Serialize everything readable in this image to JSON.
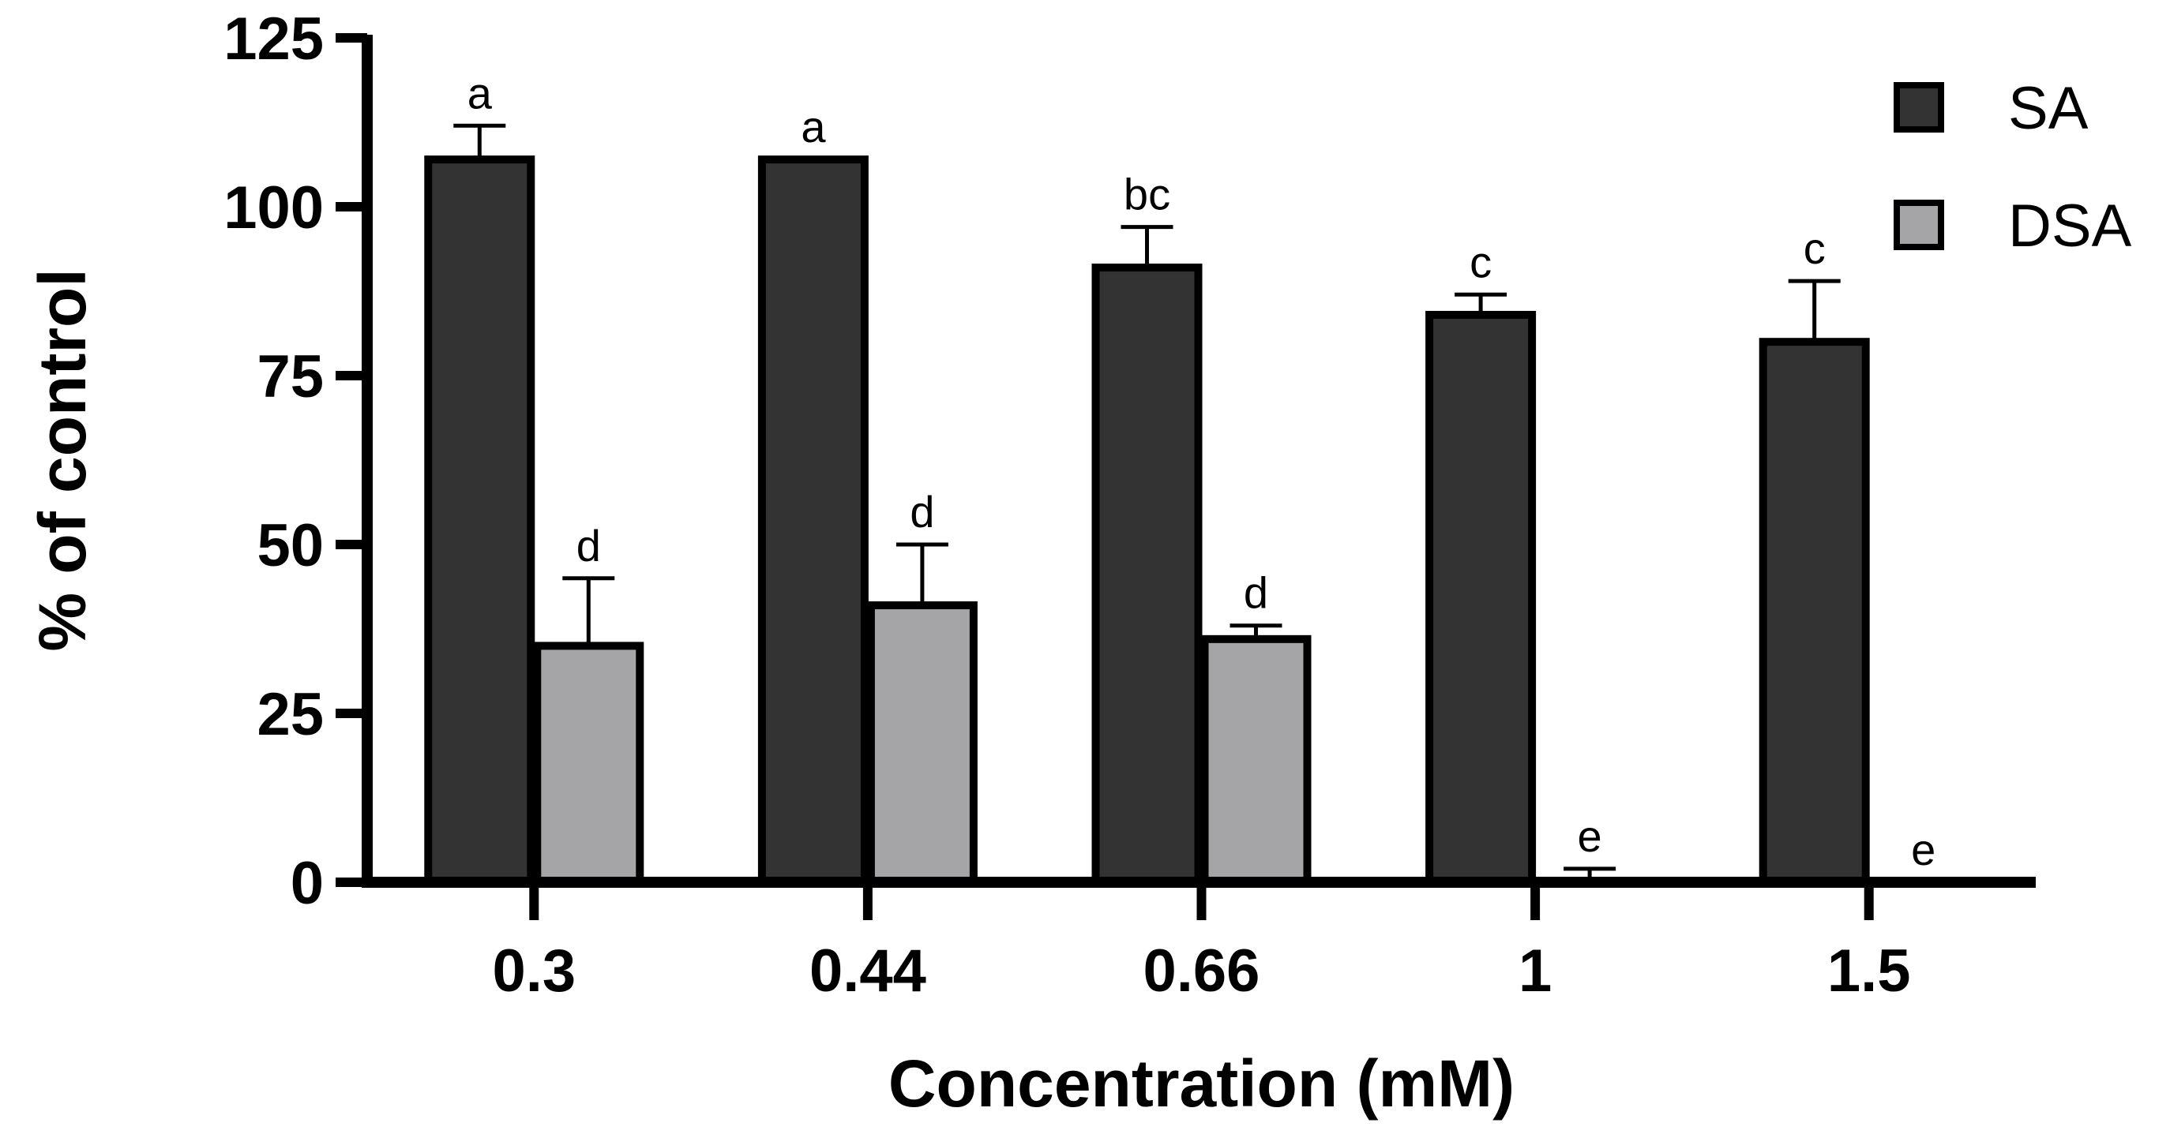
{
  "chart_data": {
    "type": "bar",
    "title": "",
    "xlabel": "Concentration (mM)",
    "ylabel": "% of control",
    "categories": [
      "0.3",
      "0.44",
      "0.66",
      "1",
      "1.5"
    ],
    "ylim": [
      0,
      125
    ],
    "yticks": [
      0,
      25,
      50,
      75,
      100,
      125
    ],
    "ytick_labels": [
      "0",
      "25",
      "50",
      "75",
      "100",
      "125"
    ],
    "grid": false,
    "legend_position": "top-right",
    "series": [
      {
        "name": "SA",
        "color": "#333333",
        "values": [
          107,
          107,
          91,
          84,
          80
        ],
        "errors": [
          5,
          0,
          6,
          3,
          9
        ],
        "labels": [
          "a",
          "a",
          "bc",
          "c",
          "c"
        ]
      },
      {
        "name": "DSA",
        "color": "#a5a5a8",
        "values": [
          35,
          41,
          36,
          0,
          0
        ],
        "errors": [
          10,
          9,
          2,
          2,
          0
        ],
        "labels": [
          "d",
          "d",
          "d",
          "e",
          "e"
        ]
      }
    ]
  }
}
